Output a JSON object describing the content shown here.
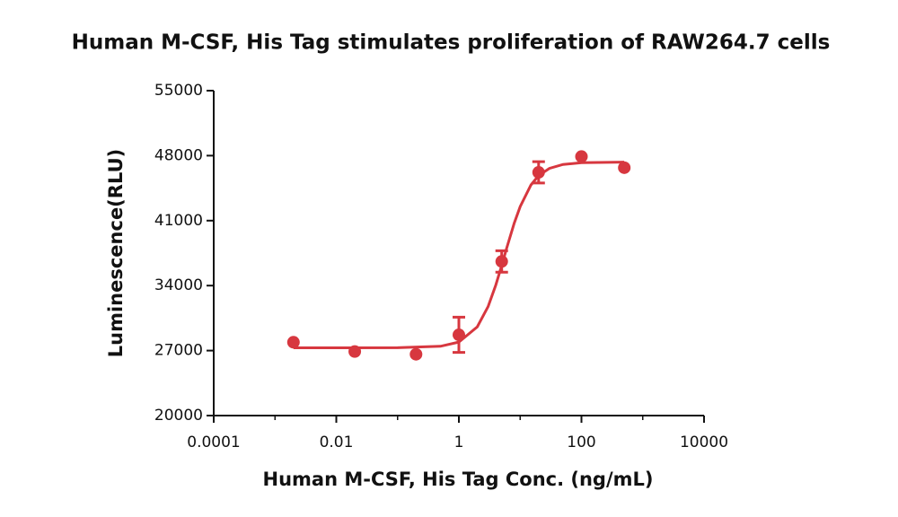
{
  "chart_data": {
    "type": "scatter",
    "title": "Human M-CSF, His Tag stimulates proliferation of RAW264.7 cells",
    "x_label": "Human M-CSF, His Tag Conc. (ng/mL)",
    "y_label": "Luminescence(RLU)",
    "x_scale": "log",
    "xlim": [
      0.0001,
      10000
    ],
    "xticks": [
      0.0001,
      0.01,
      1,
      100,
      10000
    ],
    "ylim": [
      20000,
      55000
    ],
    "yticks": [
      20000,
      27000,
      34000,
      41000,
      48000,
      55000
    ],
    "color": "#d7373f",
    "series": [
      {
        "x": [
          0.002,
          0.02,
          0.2,
          1,
          5,
          20,
          100,
          500
        ],
        "values": [
          27900,
          26900,
          26600,
          28700,
          36600,
          46200,
          47900,
          46700
        ],
        "errors": [
          null,
          null,
          null,
          1900,
          1150,
          1150,
          null,
          null
        ]
      }
    ],
    "fit": {
      "x": [
        0.002,
        0.01,
        0.1,
        0.5,
        1,
        2,
        3,
        4,
        5,
        6,
        8,
        10,
        15,
        20,
        30,
        50,
        100,
        500
      ],
      "values": [
        27300,
        27300,
        27306,
        27460,
        27920,
        29560,
        31760,
        34060,
        36170,
        37990,
        40720,
        42520,
        44850,
        45850,
        46630,
        47050,
        47240,
        47300
      ]
    }
  }
}
